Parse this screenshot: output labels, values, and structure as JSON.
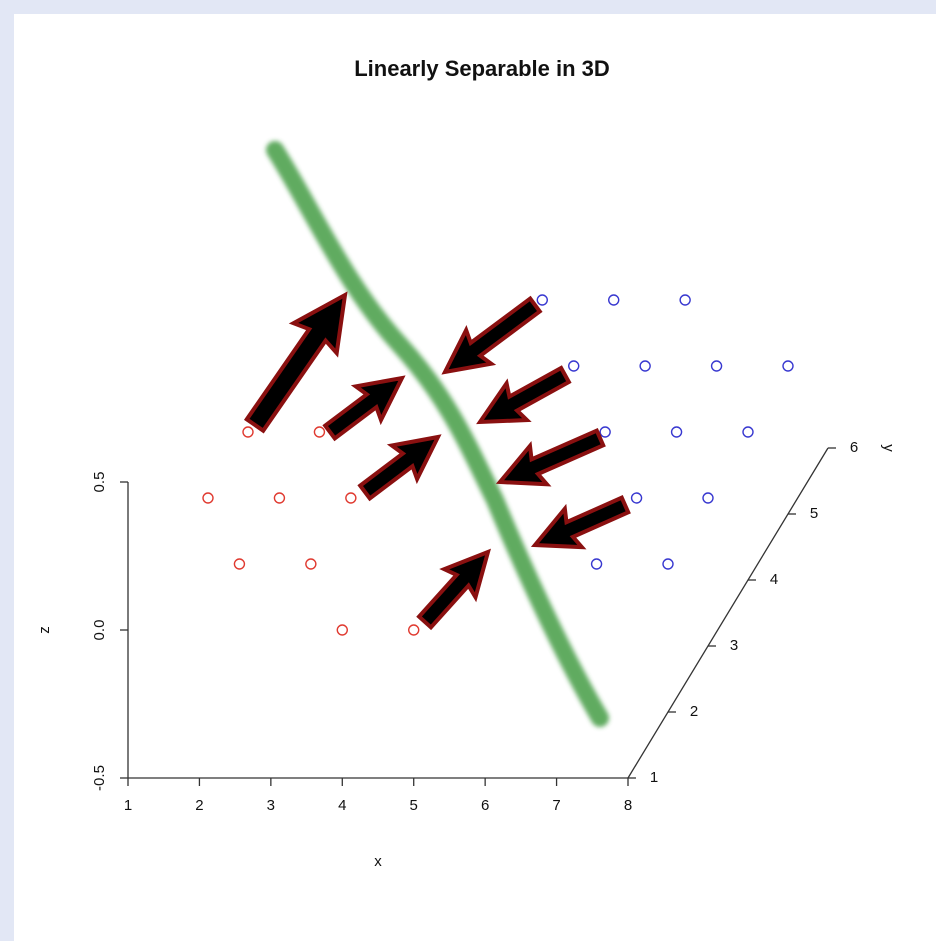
{
  "chart_data": {
    "type": "scatter3d",
    "title": "Linearly Separable in 3D",
    "x_label": "x",
    "y_label": "y",
    "z_label": "z",
    "xlim": [
      1,
      8
    ],
    "xticks": [
      1,
      2,
      3,
      4,
      5,
      6,
      7,
      8
    ],
    "ylim": [
      1,
      6
    ],
    "yticks": [
      1,
      2,
      3,
      4,
      5,
      6
    ],
    "zlim": [
      -0.5,
      0.5
    ],
    "zticks": [
      -0.5,
      {
        "value": 0,
        "label": "0.0"
      },
      0.5
    ],
    "series": [
      {
        "color": "#e03a30",
        "x": [
          4,
          5,
          2,
          3,
          1,
          2,
          3,
          1,
          2
        ],
        "y": [
          1,
          1,
          2,
          2,
          3,
          3,
          3,
          4,
          4
        ],
        "z": [
          0,
          0,
          0,
          0,
          0,
          0,
          0,
          0,
          0
        ]
      },
      {
        "color": "#3838d0",
        "x": [
          7,
          8,
          7,
          8,
          6,
          7,
          8,
          5,
          6,
          7,
          8,
          4,
          5,
          6
        ],
        "y": [
          2,
          2,
          3,
          3,
          4,
          4,
          4,
          5,
          5,
          5,
          5,
          6,
          6,
          6
        ],
        "z": [
          0,
          0,
          0,
          0,
          0,
          0,
          0,
          0,
          0,
          0,
          0,
          0,
          0,
          0
        ]
      }
    ]
  }
}
